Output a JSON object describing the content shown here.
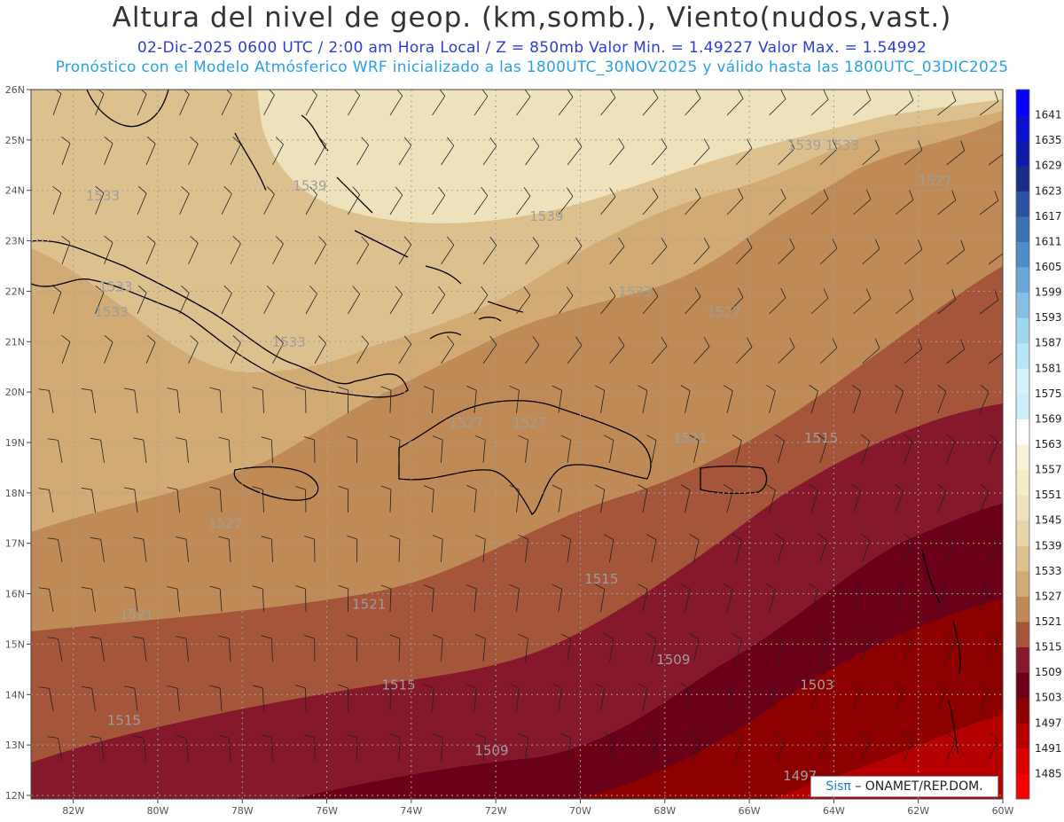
{
  "header": {
    "title": "Altura del nivel de geop. (km,somb.), Viento(nudos,vast.)",
    "line1": "02-Dic-2025   0600 UTC / 2:00 am Hora Local / Z = 850mb     Valor Min. = 1.49227  Valor Max. = 1.54992",
    "line2": "Pronóstico con el Modelo Atmósferico WRF inicializado a las 1800UTC_30NOV2025 y válido hasta las  1800UTC_03DIC2025"
  },
  "axes": {
    "lon_labels": [
      "82W",
      "80W",
      "78W",
      "76W",
      "74W",
      "72W",
      "70W",
      "68W",
      "66W",
      "64W",
      "62W",
      "60W"
    ],
    "lat_labels": [
      "12N",
      "13N",
      "14N",
      "15N",
      "16N",
      "17N",
      "18N",
      "19N",
      "20N",
      "21N",
      "22N",
      "23N",
      "24N",
      "25N",
      "26N"
    ]
  },
  "colorbar": {
    "levels": [
      "1485",
      "1491",
      "1497",
      "1503",
      "1509",
      "1515",
      "1521",
      "1527",
      "1533",
      "1539",
      "1545",
      "1551",
      "1557",
      "1563",
      "1569",
      "1575",
      "1581",
      "1587",
      "1593",
      "1599",
      "1605",
      "1611",
      "1617",
      "1623",
      "1629",
      "1635",
      "1641"
    ],
    "colors": [
      "#f20000",
      "#d80000",
      "#b50000",
      "#8c0000",
      "#6a0018",
      "#85182a",
      "#a5553a",
      "#bf8a55",
      "#d2aa74",
      "#dcc08e",
      "#e6d5a8",
      "#eee2bc",
      "#f5ecc8",
      "#f8f3d8",
      "#ffffff",
      "#cceef8",
      "#d6f2fb",
      "#b8e6f4",
      "#a0d6ee",
      "#85c0e4",
      "#6aa6d6",
      "#4f8cc8",
      "#3a70b4",
      "#2a52a0",
      "#1a2c88",
      "#0e1aa8",
      "#0a10d0",
      "#0800ff"
    ]
  },
  "contour_labels": [
    {
      "text": "1533",
      "lon": -81.3,
      "lat": 23.8
    },
    {
      "text": "1539",
      "lon": -76.4,
      "lat": 24.0
    },
    {
      "text": "1539",
      "lon": -70.8,
      "lat": 23.4
    },
    {
      "text": "1539",
      "lon": -64.7,
      "lat": 24.8
    },
    {
      "text": "1533",
      "lon": -63.8,
      "lat": 24.8
    },
    {
      "text": "1527",
      "lon": -61.6,
      "lat": 24.1
    },
    {
      "text": "1533",
      "lon": -81.0,
      "lat": 22.0
    },
    {
      "text": "1533",
      "lon": -81.1,
      "lat": 21.5
    },
    {
      "text": "1533",
      "lon": -76.9,
      "lat": 20.9
    },
    {
      "text": "1533",
      "lon": -68.7,
      "lat": 21.9
    },
    {
      "text": "1527",
      "lon": -66.6,
      "lat": 21.5
    },
    {
      "text": "1527",
      "lon": -72.7,
      "lat": 19.3
    },
    {
      "text": "1527",
      "lon": -71.2,
      "lat": 19.3
    },
    {
      "text": "1521",
      "lon": -67.4,
      "lat": 19.0
    },
    {
      "text": "1515",
      "lon": -64.3,
      "lat": 19.0
    },
    {
      "text": "1527",
      "lon": -78.4,
      "lat": 17.3
    },
    {
      "text": "1515",
      "lon": -69.5,
      "lat": 16.2
    },
    {
      "text": "1521",
      "lon": -80.5,
      "lat": 15.5
    },
    {
      "text": "1521",
      "lon": -75.0,
      "lat": 15.7
    },
    {
      "text": "1509",
      "lon": -67.8,
      "lat": 14.6
    },
    {
      "text": "1515",
      "lon": -74.3,
      "lat": 14.1
    },
    {
      "text": "1503",
      "lon": -64.4,
      "lat": 14.1
    },
    {
      "text": "1515",
      "lon": -80.8,
      "lat": 13.4
    },
    {
      "text": "1509",
      "lon": -72.1,
      "lat": 12.8
    },
    {
      "text": "1497",
      "lon": -64.8,
      "lat": 12.3
    }
  ],
  "logo": {
    "brand": "Sisπ",
    "text": "– ONAMET/REP.DOM."
  }
}
